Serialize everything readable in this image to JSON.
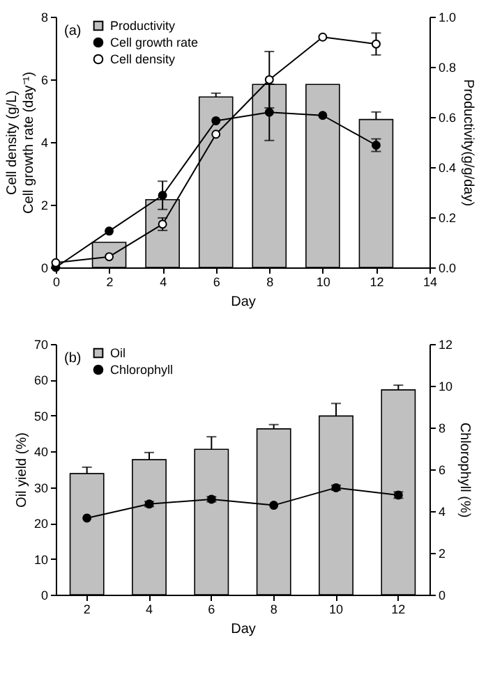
{
  "chart_data": [
    {
      "type": "bar",
      "x": [
        0,
        2,
        4,
        6,
        8,
        10,
        12
      ],
      "xlabel": "Day",
      "ylabel": "Cell density (g/L)\nCell growth rate (day⁻¹)",
      "y2label": "Productivity(g/g/day)",
      "annotations": [
        "(a)"
      ],
      "xlim": [
        0,
        14
      ],
      "xticks": [
        0,
        2,
        4,
        6,
        8,
        10,
        12,
        14
      ],
      "ylim": [
        0,
        8
      ],
      "yticks": [
        0,
        2,
        4,
        6,
        8
      ],
      "y2lim": [
        0,
        1
      ],
      "y2ticks": [
        {
          "value": 0,
          "label": "0.0"
        },
        0.2,
        0.4,
        0.6,
        0.8,
        {
          "value": 1,
          "label": "1.0"
        }
      ],
      "legend": "top left",
      "grid": false,
      "series": [
        {
          "name": "Productivity",
          "axis": "y2",
          "color": "#c0c0c0",
          "x": [
            2,
            4,
            6,
            8,
            10,
            12
          ],
          "values": [
            0.1,
            0.27,
            0.68,
            0.73,
            0.73,
            0.59
          ],
          "errors": [
            null,
            null,
            0.015,
            null,
            null,
            0.03
          ]
        },
        {
          "name": "Cell growth rate",
          "type": "line",
          "marker": "circle",
          "color": "#000000",
          "values": [
            0,
            1.16,
            2.3,
            4.68,
            4.95,
            4.85,
            3.9
          ],
          "errors": [
            null,
            null,
            0.45,
            null,
            0.9,
            null,
            0.2
          ]
        },
        {
          "name": "Cell density",
          "type": "line",
          "marker": "circle",
          "color": "#ffffff",
          "values": [
            0.15,
            0.34,
            1.38,
            4.25,
            5.99,
            7.35,
            7.13
          ],
          "errors": [
            null,
            null,
            0.2,
            null,
            0.9,
            null,
            0.35
          ]
        }
      ]
    },
    {
      "type": "bar",
      "categories": [
        "2",
        "4",
        "6",
        "8",
        "10",
        "12"
      ],
      "xlabel": "Day",
      "ylabel": "Oil yield (%)",
      "y2label": "Chlorophyll (%)",
      "annotations": [
        "(b)"
      ],
      "ylim": [
        0,
        70
      ],
      "yticks": [
        0,
        10,
        20,
        30,
        40,
        50,
        60,
        70
      ],
      "y2lim": [
        0,
        12
      ],
      "y2ticks": [
        0,
        2,
        4,
        6,
        8,
        10,
        12
      ],
      "legend": "top left",
      "grid": false,
      "series": [
        {
          "name": "Oil",
          "color": "#c0c0c0",
          "values": [
            33.8,
            37.7,
            40.6,
            46.3,
            49.9,
            57.2
          ],
          "errors": [
            1.8,
            2,
            3.5,
            1.2,
            3.5,
            1.3
          ]
        },
        {
          "name": "Chlorophyll",
          "type": "line",
          "axis": "y2",
          "marker": "circle",
          "color": "#000000",
          "values": [
            3.67,
            4.34,
            4.57,
            4.28,
            5.12,
            4.77
          ],
          "errors": [
            null,
            0.12,
            0.12,
            null,
            0.12,
            0.15
          ]
        }
      ]
    }
  ]
}
